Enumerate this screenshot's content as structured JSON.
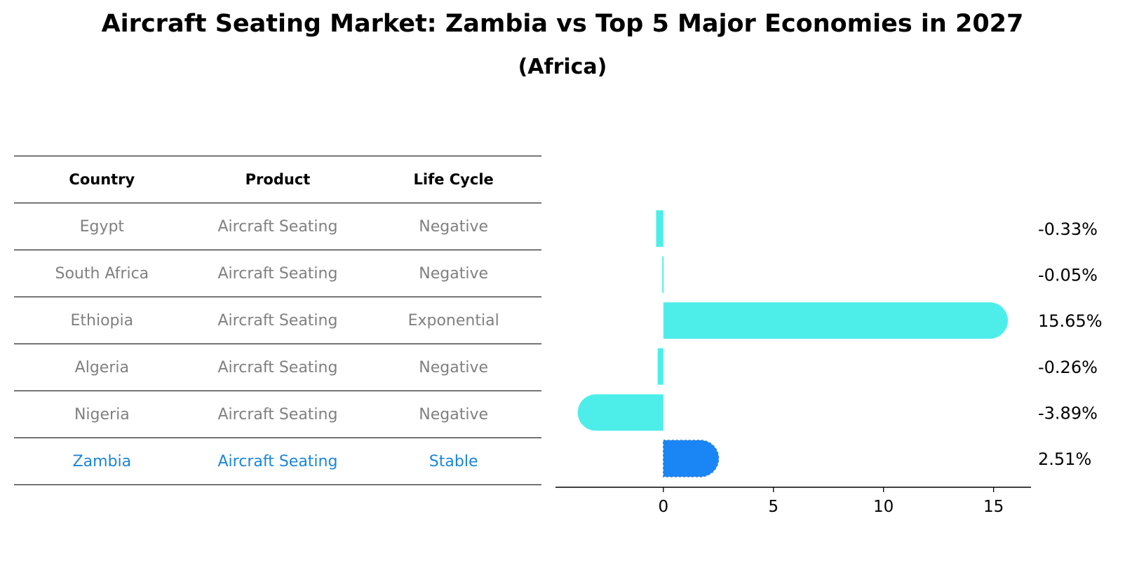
{
  "title": "Aircraft Seating Market: Zambia vs Top 5 Major Economies in 2027",
  "subtitle": "(Africa)",
  "table": {
    "headers": [
      "Country",
      "Product",
      "Life Cycle"
    ],
    "rows": [
      [
        "Egypt",
        "Aircraft Seating",
        "Negative"
      ],
      [
        "South Africa",
        "Aircraft Seating",
        "Negative"
      ],
      [
        "Ethiopia",
        "Aircraft Seating",
        "Exponential"
      ],
      [
        "Algeria",
        "Aircraft Seating",
        "Negative"
      ],
      [
        "Nigeria",
        "Aircraft Seating",
        "Negative"
      ],
      [
        "Zambia",
        "Aircraft Seating",
        "Stable"
      ]
    ],
    "highlight_row": 5
  },
  "chart_data": {
    "type": "bar",
    "orientation": "horizontal",
    "categories": [
      "Egypt",
      "South Africa",
      "Ethiopia",
      "Algeria",
      "Nigeria",
      "Zambia"
    ],
    "values": [
      -0.33,
      -0.05,
      15.65,
      -0.26,
      -3.89,
      2.51
    ],
    "value_labels": [
      "-0.33%",
      "-0.05%",
      "15.65%",
      "-0.26%",
      "-3.89%",
      "2.51%"
    ],
    "highlight": "Zambia",
    "xticks": [
      0,
      5,
      10,
      15
    ],
    "xlim": [
      -4.9,
      16.7
    ],
    "colors": {
      "default": "#4deeea",
      "highlight": "#1a86f5"
    }
  }
}
